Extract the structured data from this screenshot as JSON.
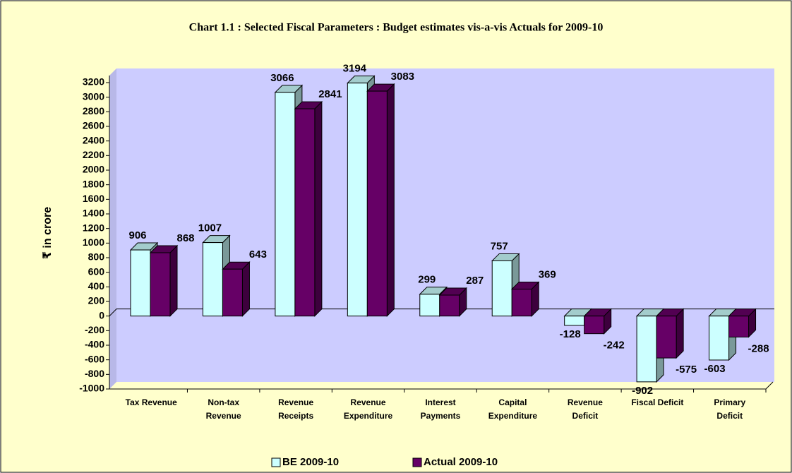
{
  "chart_data": {
    "type": "bar",
    "title": "Chart 1.1 : Selected Fiscal Parameters : Budget estimates vis-a-vis Actuals for 2009-10",
    "y_label": "₹ in crore",
    "categories": [
      "Tax Revenue",
      "Non-tax\nRevenue",
      "Revenue\nReceipts",
      "Revenue\nExpenditure",
      "Interest\nPayments",
      "Capital\nExpenditure",
      "Revenue\nDeficit",
      "Fiscal Deficit",
      "Primary\nDeficit"
    ],
    "series": [
      {
        "name": "BE 2009-10",
        "color": "#ccffff",
        "values": [
          906,
          1007,
          3066,
          3194,
          299,
          757,
          -128,
          -902,
          -603
        ]
      },
      {
        "name": "Actual 2009-10",
        "color": "#660066",
        "values": [
          868,
          643,
          2841,
          3083,
          287,
          369,
          -242,
          -575,
          -288
        ]
      }
    ],
    "ylim": [
      -1000,
      3200
    ],
    "yticks": [
      -1000,
      -800,
      -600,
      -400,
      -200,
      0,
      200,
      400,
      600,
      800,
      1000,
      1200,
      1400,
      1600,
      1800,
      2000,
      2200,
      2400,
      2600,
      2800,
      3000,
      3200
    ],
    "legend": "bottom"
  }
}
